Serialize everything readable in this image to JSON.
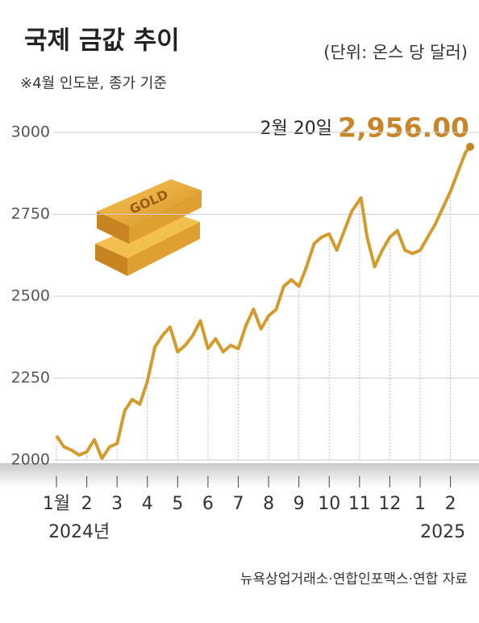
{
  "chart_data": {
    "type": "line",
    "title": "국제 금값 추이",
    "unit": "(단위: 온스 당 달러)",
    "subtitle": "※4월 인도분, 종가 기준",
    "source": "뉴욕상업거래소·연합인포맥스·연합 자료",
    "icon_label": "GOLD",
    "annotation": {
      "text": "2월 20일",
      "label": "2,956.00"
    },
    "color": "#d29b2b",
    "grid": true,
    "x": [
      0,
      0.25,
      0.5,
      0.75,
      1.0,
      1.25,
      1.5,
      1.75,
      2.0,
      2.25,
      2.5,
      2.75,
      3.0,
      3.25,
      3.5,
      3.75,
      4.0,
      4.25,
      4.5,
      4.75,
      5.0,
      5.25,
      5.5,
      5.75,
      6.0,
      6.25,
      6.5,
      6.75,
      7.0,
      7.25,
      7.5,
      7.75,
      8.0,
      8.25,
      8.5,
      8.75,
      9.0,
      9.25,
      9.5,
      9.75,
      10.05,
      10.25,
      10.5,
      10.75,
      11.0,
      11.25,
      11.5,
      11.75,
      12.0,
      12.25,
      12.5,
      12.75,
      13.0,
      13.25,
      13.5,
      13.65
    ],
    "values": [
      2074,
      2040,
      2030,
      2015,
      2025,
      2062,
      2005,
      2040,
      2050,
      2150,
      2185,
      2170,
      2240,
      2345,
      2380,
      2406,
      2330,
      2350,
      2380,
      2425,
      2340,
      2370,
      2330,
      2350,
      2340,
      2410,
      2460,
      2400,
      2440,
      2460,
      2530,
      2550,
      2530,
      2590,
      2660,
      2680,
      2690,
      2640,
      2700,
      2760,
      2800,
      2680,
      2590,
      2640,
      2680,
      2700,
      2640,
      2630,
      2640,
      2680,
      2720,
      2770,
      2820,
      2880,
      2940,
      2956
    ],
    "xlim": [
      0,
      13.65
    ],
    "ylim": [
      2000,
      3000
    ],
    "yticks": [
      2000,
      2250,
      2500,
      2750,
      3000
    ],
    "xticks": [
      {
        "value": 0,
        "label": "1월"
      },
      {
        "value": 1,
        "label": "2"
      },
      {
        "value": 2,
        "label": "3"
      },
      {
        "value": 3,
        "label": "4"
      },
      {
        "value": 4,
        "label": "5"
      },
      {
        "value": 5,
        "label": "6"
      },
      {
        "value": 6,
        "label": "7"
      },
      {
        "value": 7,
        "label": "8"
      },
      {
        "value": 8,
        "label": "9"
      },
      {
        "value": 9,
        "label": "10"
      },
      {
        "value": 10,
        "label": "11"
      },
      {
        "value": 11,
        "label": "12"
      },
      {
        "value": 12,
        "label": "1"
      },
      {
        "value": 13,
        "label": "2"
      }
    ],
    "year_labels": [
      {
        "value": 0.75,
        "label": "2024년"
      },
      {
        "value": 12.75,
        "label": "2025"
      }
    ]
  }
}
